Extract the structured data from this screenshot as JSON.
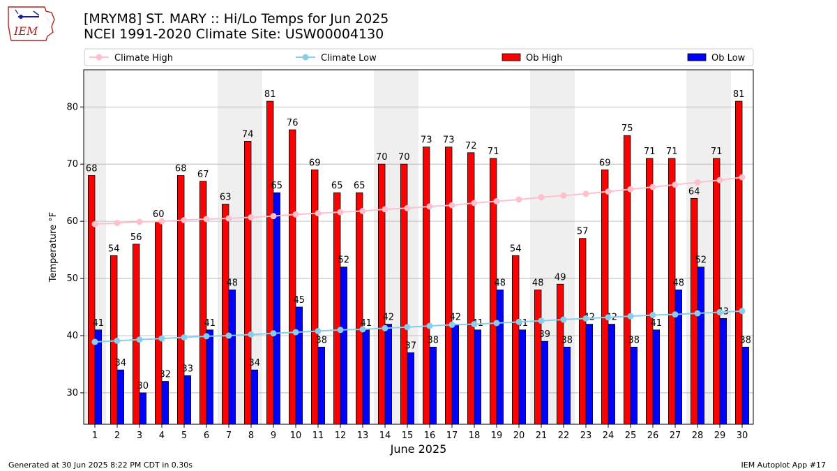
{
  "logo": {
    "text": "IEM"
  },
  "header": {
    "title_line1": "[MRYM8] ST. MARY :: Hi/Lo Temps for Jun 2025",
    "title_line2": "NCEI 1991-2020 Climate Site: USW00004130"
  },
  "footer": {
    "left": "Generated at 30 Jun 2025 8:22 PM CDT in 0.30s",
    "right": "IEM Autoplot App #17"
  },
  "colors": {
    "ob_high": "#ff0000",
    "ob_low": "#0000ff",
    "climate_high": "#ffc0cb",
    "climate_low": "#87ceeb",
    "weekend_band": "#efefef",
    "grid": "#b0b0b0"
  },
  "chart_data": {
    "type": "bar",
    "xlabel": "June 2025",
    "ylabel": "Temperature °F",
    "ylim": [
      24.5,
      86.5
    ],
    "yticks": [
      30,
      40,
      50,
      60,
      70,
      80
    ],
    "grid": "horizontal",
    "legend_placement": "top",
    "categories": [
      "1",
      "2",
      "3",
      "4",
      "5",
      "6",
      "7",
      "8",
      "9",
      "10",
      "11",
      "12",
      "13",
      "14",
      "15",
      "16",
      "17",
      "18",
      "19",
      "20",
      "21",
      "22",
      "23",
      "24",
      "25",
      "26",
      "27",
      "28",
      "29",
      "30"
    ],
    "shaded_days": [
      1,
      7,
      8,
      14,
      15,
      21,
      22,
      28,
      29
    ],
    "series": [
      {
        "name": "Climate High",
        "kind": "line",
        "values": [
          59.5,
          59.7,
          59.9,
          60.0,
          60.2,
          60.4,
          60.5,
          60.7,
          60.9,
          61.2,
          61.4,
          61.6,
          61.8,
          62.1,
          62.3,
          62.6,
          62.8,
          63.2,
          63.5,
          63.8,
          64.2,
          64.5,
          64.8,
          65.2,
          65.6,
          66.0,
          66.4,
          66.8,
          67.2,
          67.7
        ]
      },
      {
        "name": "Climate Low",
        "kind": "line",
        "values": [
          38.9,
          39.1,
          39.3,
          39.5,
          39.7,
          39.9,
          40.0,
          40.2,
          40.4,
          40.6,
          40.8,
          41.0,
          41.1,
          41.3,
          41.5,
          41.7,
          41.9,
          42.0,
          42.2,
          42.4,
          42.6,
          42.8,
          43.0,
          43.2,
          43.4,
          43.6,
          43.7,
          43.9,
          44.1,
          44.3
        ]
      },
      {
        "name": "Ob High",
        "kind": "bar",
        "values": [
          68,
          54,
          56,
          60,
          68,
          67,
          63,
          74,
          81,
          76,
          69,
          65,
          65,
          70,
          70,
          73,
          73,
          72,
          71,
          54,
          48,
          49,
          57,
          69,
          75,
          71,
          71,
          64,
          71,
          81
        ]
      },
      {
        "name": "Ob Low",
        "kind": "bar",
        "values": [
          41,
          34,
          30,
          32,
          33,
          41,
          48,
          34,
          65,
          45,
          38,
          52,
          41,
          42,
          37,
          38,
          42,
          41,
          48,
          41,
          39,
          38,
          42,
          42,
          38,
          41,
          48,
          52,
          43,
          38
        ]
      }
    ]
  }
}
